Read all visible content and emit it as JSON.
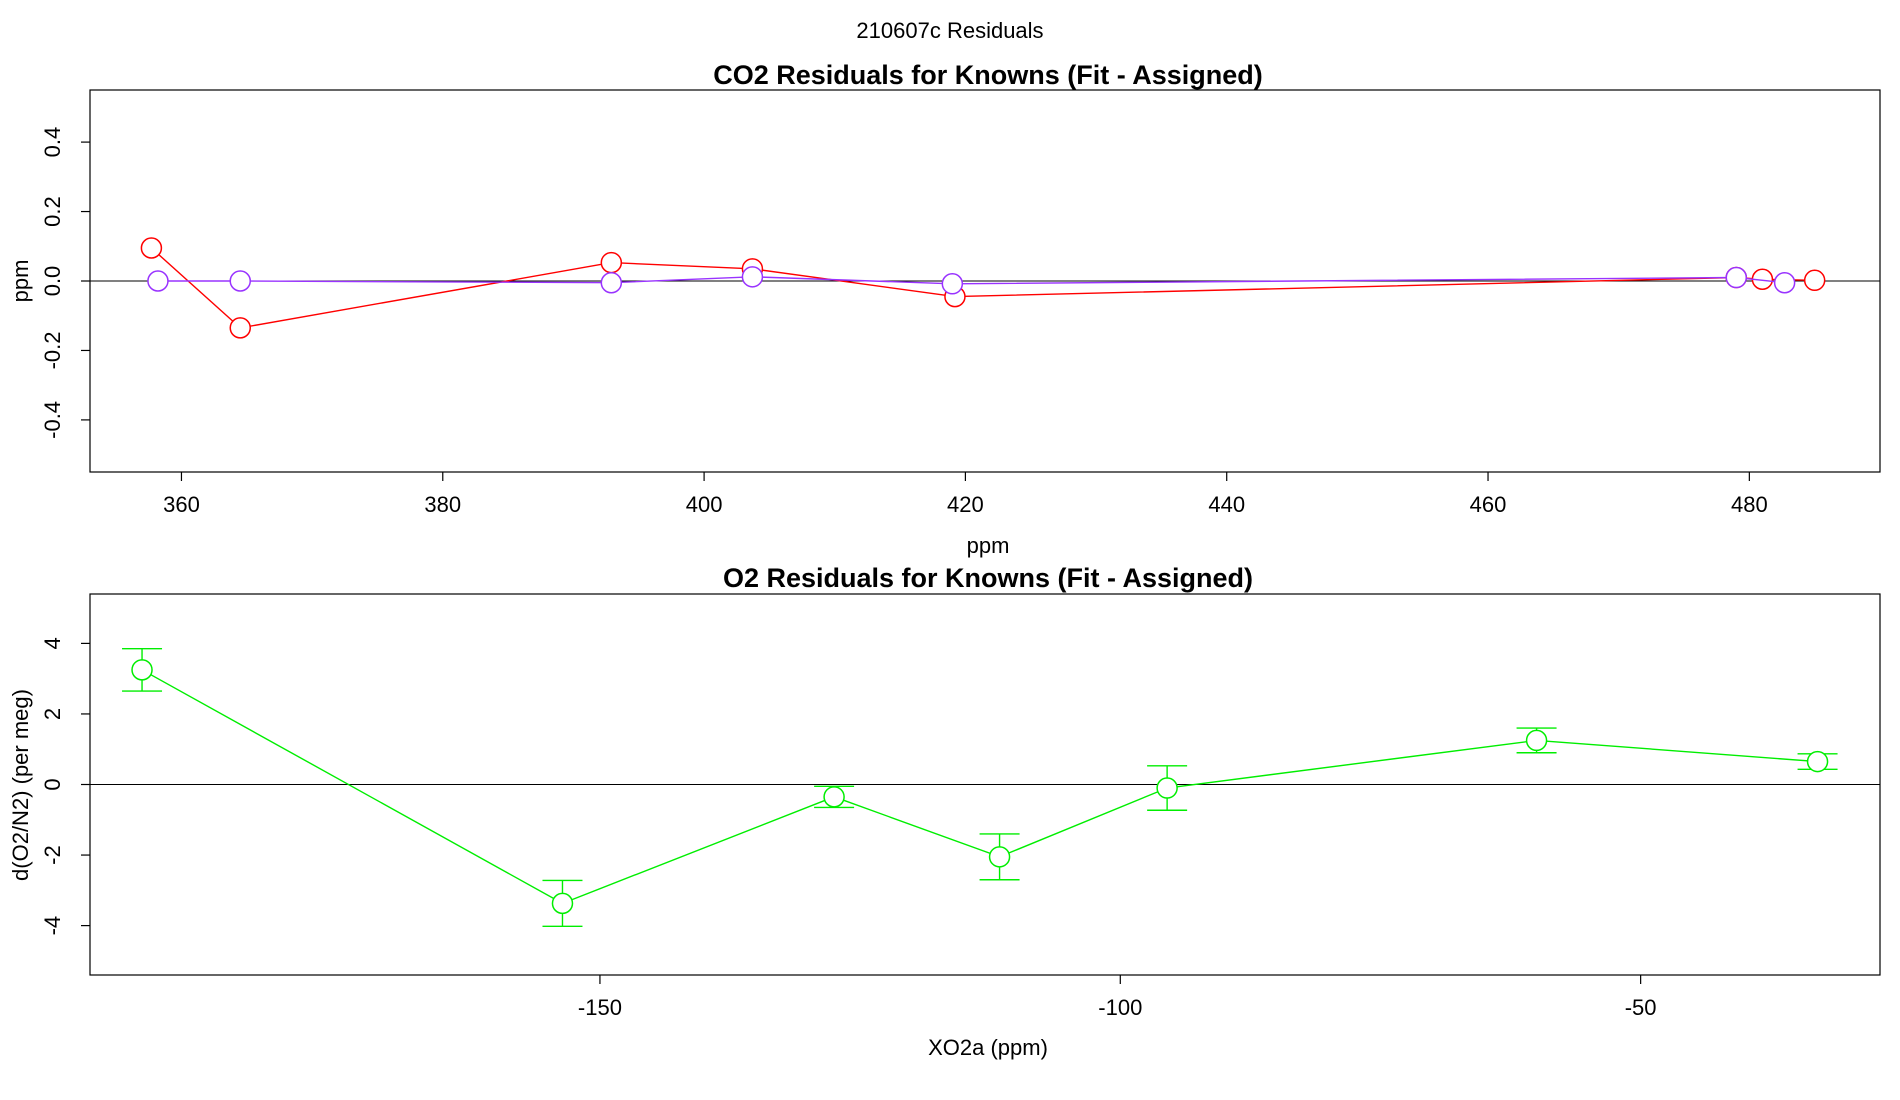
{
  "figure_title": "210607c  Residuals",
  "colors": {
    "co2_series_1": "#ff0000",
    "co2_series_2": "#9933ff",
    "o2_series": "#00ee00",
    "axis": "#000000"
  },
  "chart_data": [
    {
      "type": "line",
      "title": "CO2 Residuals for Knowns (Fit - Assigned)",
      "xlabel": "ppm",
      "ylabel": "ppm",
      "xlim": [
        353,
        490
      ],
      "ylim": [
        -0.55,
        0.55
      ],
      "xticks": [
        360,
        380,
        400,
        420,
        440,
        460,
        480
      ],
      "xtick_labels": [
        "360",
        "380",
        "400",
        "420",
        "440",
        "460",
        "480"
      ],
      "yticks": [
        -0.4,
        -0.2,
        0.0,
        0.2,
        0.4
      ],
      "ytick_labels": [
        "-0.4",
        "-0.2",
        "0.0",
        "0.2",
        "0.4"
      ],
      "reference_line_y": 0,
      "series": [
        {
          "name": "series 1 (red)",
          "color": "#ff0000",
          "x": [
            357.7,
            364.5,
            392.9,
            403.7,
            419.2,
            479.0,
            481.0,
            485.0
          ],
          "y": [
            0.095,
            -0.135,
            0.053,
            0.035,
            -0.045,
            0.01,
            0.005,
            0.002
          ]
        },
        {
          "name": "series 2 (purple)",
          "color": "#9933ff",
          "x": [
            358.2,
            364.5,
            392.9,
            403.7,
            419.0,
            479.0,
            482.7
          ],
          "y": [
            0.0,
            0.0,
            -0.005,
            0.012,
            -0.008,
            0.01,
            -0.005
          ]
        }
      ]
    },
    {
      "type": "line",
      "title": "O2 Residuals for Knowns (Fit - Assigned)",
      "xlabel": "XO2a (ppm)",
      "ylabel": "d(O2/N2) (per meg)",
      "xlim": [
        -199,
        -27
      ],
      "ylim": [
        -5.4,
        5.4
      ],
      "xticks": [
        -150,
        -100,
        -50
      ],
      "xtick_labels": [
        "-150",
        "-100",
        "-50"
      ],
      "yticks": [
        -4,
        -2,
        0,
        2,
        4
      ],
      "ytick_labels": [
        "-4",
        "-2",
        "0",
        "2",
        "4"
      ],
      "reference_line_y": 0,
      "series": [
        {
          "name": "O2 residuals",
          "color": "#00ee00",
          "x": [
            -194.0,
            -153.6,
            -127.5,
            -111.6,
            -95.5,
            -60.0,
            -33.0
          ],
          "y": [
            3.25,
            -3.37,
            -0.35,
            -2.05,
            -0.1,
            1.25,
            0.65
          ],
          "err": [
            0.6,
            0.65,
            0.3,
            0.65,
            0.63,
            0.35,
            0.22
          ]
        }
      ]
    }
  ]
}
